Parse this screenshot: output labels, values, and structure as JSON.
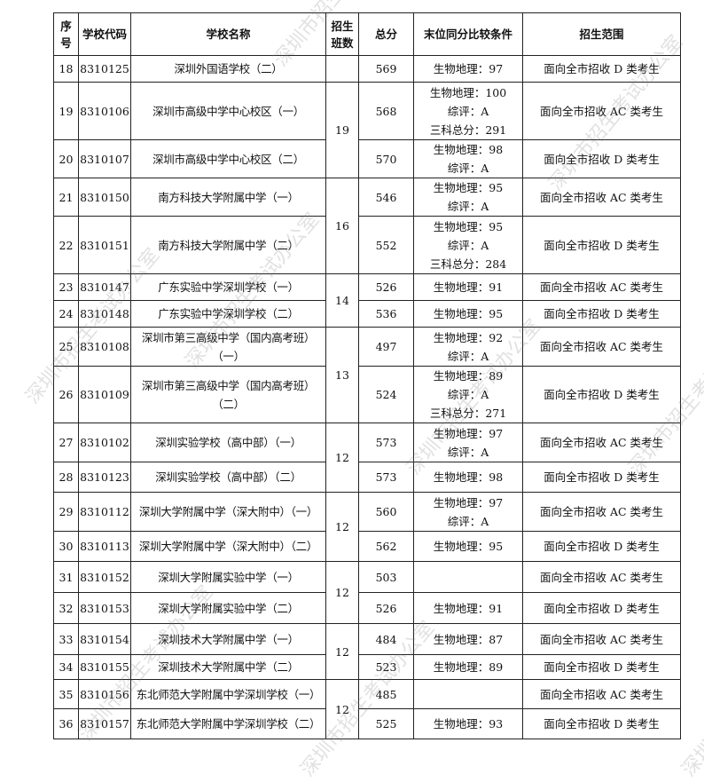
{
  "headers": [
    "序号",
    "学校代码",
    "学校名称",
    "招生班数",
    "总分",
    "末位同分比较条件",
    "招生范围"
  ],
  "header_lines": {
    "seq": [
      "序",
      "号"
    ],
    "classes": [
      "招生",
      "班数"
    ]
  },
  "rows": [
    {
      "no": "18",
      "code": "8310125",
      "name": [
        "深圳外国语学校（二）"
      ],
      "score": "569",
      "cond": [
        "生物地理：97"
      ],
      "scope": "面向全市招收 D 类考生"
    },
    {
      "no": "19",
      "code": "8310106",
      "name": [
        "深圳市高级中学中心校区（一）"
      ],
      "score": "568",
      "cond": [
        "生物地理：100",
        "综评：A",
        "三科总分：291"
      ],
      "scope": "面向全市招收 AC 类考生"
    },
    {
      "no": "20",
      "code": "8310107",
      "name": [
        "深圳市高级中学中心校区（二）"
      ],
      "score": "570",
      "cond": [
        "生物地理：98",
        "综评：A"
      ],
      "scope": "面向全市招收 D 类考生"
    },
    {
      "no": "21",
      "code": "8310150",
      "name": [
        "南方科技大学附属中学（一）"
      ],
      "score": "546",
      "cond": [
        "生物地理：95",
        "综评：A"
      ],
      "scope": "面向全市招收 AC 类考生"
    },
    {
      "no": "22",
      "code": "8310151",
      "name": [
        "南方科技大学附属中学（二）"
      ],
      "score": "552",
      "cond": [
        "生物地理：95",
        "综评：A",
        "三科总分：284"
      ],
      "scope": "面向全市招收 D 类考生"
    },
    {
      "no": "23",
      "code": "8310147",
      "name": [
        "广东实验中学深圳学校（一）"
      ],
      "score": "526",
      "cond": [
        "生物地理：91"
      ],
      "scope": "面向全市招收 AC 类考生"
    },
    {
      "no": "24",
      "code": "8310148",
      "name": [
        "广东实验中学深圳学校（二）"
      ],
      "score": "536",
      "cond": [
        "生物地理：95"
      ],
      "scope": "面向全市招收 D 类考生"
    },
    {
      "no": "25",
      "code": "8310108",
      "name": [
        "深圳市第三高级中学（国内高考班）",
        "（一）"
      ],
      "score": "497",
      "cond": [
        "生物地理：92",
        "综评：A"
      ],
      "scope": "面向全市招收 AC 类考生"
    },
    {
      "no": "26",
      "code": "8310109",
      "name": [
        "深圳市第三高级中学（国内高考班）",
        "（二）"
      ],
      "score": "524",
      "cond": [
        "生物地理：89",
        "综评：A",
        "三科总分：271"
      ],
      "scope": "面向全市招收 D 类考生"
    },
    {
      "no": "27",
      "code": "8310102",
      "name": [
        "深圳实验学校（高中部）（一）"
      ],
      "score": "573",
      "cond": [
        "生物地理：97",
        "综评：A"
      ],
      "scope": "面向全市招收 AC 类考生"
    },
    {
      "no": "28",
      "code": "8310123",
      "name": [
        "深圳实验学校（高中部）（二）"
      ],
      "score": "573",
      "cond": [
        "生物地理：98"
      ],
      "scope": "面向全市招收 D 类考生"
    },
    {
      "no": "29",
      "code": "8310112",
      "name": [
        "深圳大学附属中学（深大附中）（一）"
      ],
      "score": "560",
      "cond": [
        "生物地理：97",
        "综评：A"
      ],
      "scope": "面向全市招收 AC 类考生"
    },
    {
      "no": "30",
      "code": "8310113",
      "name": [
        "深圳大学附属中学（深大附中）（二）"
      ],
      "score": "562",
      "cond": [
        "生物地理：95"
      ],
      "scope": "面向全市招收 D 类考生"
    },
    {
      "no": "31",
      "code": "8310152",
      "name": [
        "深圳大学附属实验中学（一）"
      ],
      "score": "503",
      "cond": [],
      "scope": "面向全市招收 AC 类考生"
    },
    {
      "no": "32",
      "code": "8310153",
      "name": [
        "深圳大学附属实验中学（二）"
      ],
      "score": "526",
      "cond": [
        "生物地理：91"
      ],
      "scope": "面向全市招收 D 类考生"
    },
    {
      "no": "33",
      "code": "8310154",
      "name": [
        "深圳技术大学附属中学（一）"
      ],
      "score": "484",
      "cond": [
        "生物地理：87"
      ],
      "scope": "面向全市招收 AC 类考生"
    },
    {
      "no": "34",
      "code": "8310155",
      "name": [
        "深圳技术大学附属中学（二）"
      ],
      "score": "523",
      "cond": [
        "生物地理：89"
      ],
      "scope": "面向全市招收 D 类考生"
    },
    {
      "no": "35",
      "code": "8310156",
      "name": [
        "东北师范大学附属中学深圳学校（一）"
      ],
      "score": "485",
      "cond": [],
      "scope": "面向全市招收 AC 类考生"
    },
    {
      "no": "36",
      "code": "8310157",
      "name": [
        "东北师范大学附属中学深圳学校（二）"
      ],
      "score": "525",
      "cond": [
        "生物地理：93"
      ],
      "scope": "面向全市招收 D 类考生"
    }
  ],
  "class_groups": [
    {
      "start": 0,
      "span": 1,
      "value": ""
    },
    {
      "start": 1,
      "span": 2,
      "value": "19"
    },
    {
      "start": 3,
      "span": 2,
      "value": "16"
    },
    {
      "start": 5,
      "span": 2,
      "value": "14"
    },
    {
      "start": 7,
      "span": 2,
      "value": "13"
    },
    {
      "start": 9,
      "span": 2,
      "value": "12"
    },
    {
      "start": 11,
      "span": 2,
      "value": "12"
    },
    {
      "start": 13,
      "span": 2,
      "value": "12"
    },
    {
      "start": 15,
      "span": 2,
      "value": "12"
    },
    {
      "start": 17,
      "span": 2,
      "value": "12"
    }
  ],
  "watermark": "深圳市招生考试办公室"
}
